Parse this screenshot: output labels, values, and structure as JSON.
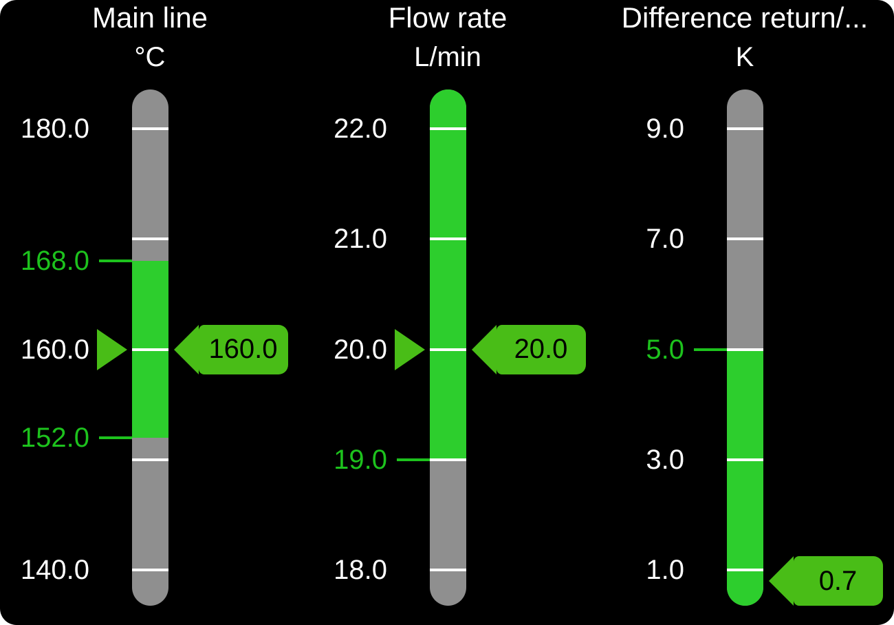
{
  "panel": {
    "background": "#000000",
    "outside_background": "#ffffff"
  },
  "colors": {
    "bar_gray": "#8F8F8F",
    "zone_green": "#2DCE2D",
    "indicator_green": "#49BD17",
    "limit_green": "#1DC21D",
    "tick_white": "#FFFFFF",
    "label_white": "#FFFFFF",
    "tag_text": "#000000"
  },
  "gauges": [
    {
      "title": "Main line",
      "unit": "°C",
      "scale": {
        "min": 140.0,
        "max": 180.0
      },
      "ticks": [
        {
          "value": 180.0,
          "label": "180.0",
          "type": "grid"
        },
        {
          "value": 170.0,
          "label": "",
          "type": "grid"
        },
        {
          "value": 168.0,
          "label": "168.0",
          "type": "limit"
        },
        {
          "value": 160.0,
          "label": "160.0",
          "type": "grid"
        },
        {
          "value": 152.0,
          "label": "152.0",
          "type": "limit"
        },
        {
          "value": 150.0,
          "label": "",
          "type": "grid"
        },
        {
          "value": 140.0,
          "label": "140.0",
          "type": "grid"
        }
      ],
      "green_zone": {
        "low": 152.0,
        "high": 168.0
      },
      "value": 160.0,
      "value_label": "160.0",
      "pointer_visible": true
    },
    {
      "title": "Flow rate",
      "unit": "L/min",
      "scale": {
        "min": 18.0,
        "max": 22.0
      },
      "ticks": [
        {
          "value": 22.0,
          "label": "22.0",
          "type": "grid"
        },
        {
          "value": 21.0,
          "label": "21.0",
          "type": "grid"
        },
        {
          "value": 20.0,
          "label": "20.0",
          "type": "grid"
        },
        {
          "value": 19.0,
          "label": "19.0",
          "type": "grid-limit"
        },
        {
          "value": 18.0,
          "label": "18.0",
          "type": "grid"
        }
      ],
      "green_zone": {
        "low": 19.0,
        "high": null
      },
      "value": 20.0,
      "value_label": "20.0",
      "pointer_visible": true
    },
    {
      "title": "Difference return/...",
      "unit": "K",
      "scale": {
        "min": 1.0,
        "max": 9.0
      },
      "ticks": [
        {
          "value": 9.0,
          "label": "9.0",
          "type": "grid"
        },
        {
          "value": 7.0,
          "label": "7.0",
          "type": "grid"
        },
        {
          "value": 5.0,
          "label": "5.0",
          "type": "grid-limit"
        },
        {
          "value": 3.0,
          "label": "3.0",
          "type": "grid"
        },
        {
          "value": 1.0,
          "label": "1.0",
          "type": "grid"
        }
      ],
      "green_zone": {
        "low": null,
        "high": 5.0
      },
      "value": 0.7,
      "value_label": "0.7",
      "pointer_visible": false
    }
  ]
}
